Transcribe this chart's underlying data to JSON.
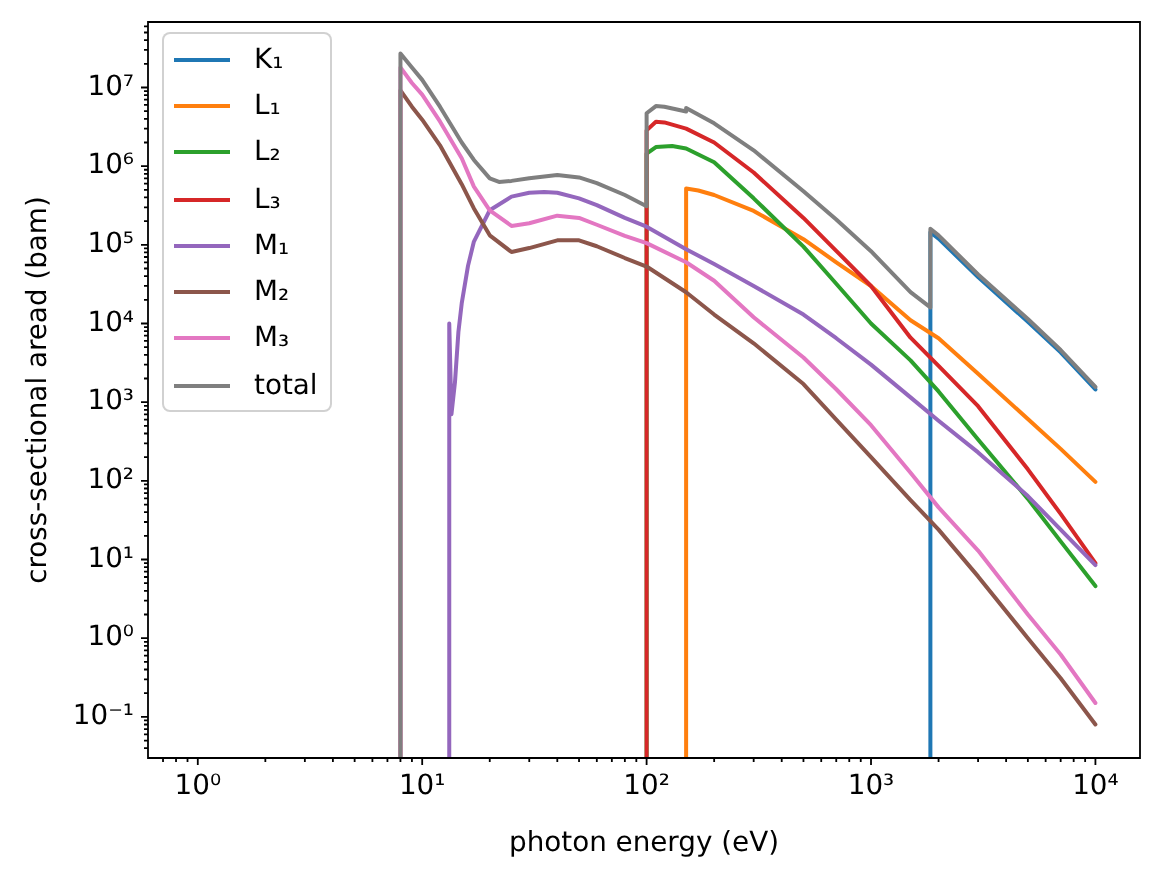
{
  "chart_data": {
    "type": "line",
    "xlabel": "photon energy (eV)",
    "ylabel": "cross-sectional aread (bam)",
    "log": "xy",
    "legend": "top left",
    "xlim": [
      0.63,
      15800
    ],
    "ylim": [
      0.03,
      68000000.0
    ],
    "xticks": [
      {
        "value": 0.7,
        "label": null
      },
      {
        "value": 0.8,
        "label": null
      },
      {
        "value": 0.9,
        "label": null
      },
      {
        "value": 1,
        "label": "10⁰"
      },
      {
        "value": 2,
        "label": null
      },
      {
        "value": 3,
        "label": null
      },
      {
        "value": 4,
        "label": null
      },
      {
        "value": 5,
        "label": null
      },
      {
        "value": 6,
        "label": null
      },
      {
        "value": 7,
        "label": null
      },
      {
        "value": 8,
        "label": null
      },
      {
        "value": 9,
        "label": null
      },
      {
        "value": 10,
        "label": "10¹"
      },
      {
        "value": 20,
        "label": null
      },
      {
        "value": 30,
        "label": null
      },
      {
        "value": 40,
        "label": null
      },
      {
        "value": 50,
        "label": null
      },
      {
        "value": 60,
        "label": null
      },
      {
        "value": 70,
        "label": null
      },
      {
        "value": 80,
        "label": null
      },
      {
        "value": 90,
        "label": null
      },
      {
        "value": 100,
        "label": "10²"
      },
      {
        "value": 200,
        "label": null
      },
      {
        "value": 300,
        "label": null
      },
      {
        "value": 400,
        "label": null
      },
      {
        "value": 500,
        "label": null
      },
      {
        "value": 600,
        "label": null
      },
      {
        "value": 700,
        "label": null
      },
      {
        "value": 800,
        "label": null
      },
      {
        "value": 900,
        "label": null
      },
      {
        "value": 1000,
        "label": "10³"
      },
      {
        "value": 2000,
        "label": null
      },
      {
        "value": 3000,
        "label": null
      },
      {
        "value": 4000,
        "label": null
      },
      {
        "value": 5000,
        "label": null
      },
      {
        "value": 6000,
        "label": null
      },
      {
        "value": 7000,
        "label": null
      },
      {
        "value": 8000,
        "label": null
      },
      {
        "value": 9000,
        "label": null
      },
      {
        "value": 10000,
        "label": "10⁴"
      }
    ],
    "yticks": [
      {
        "value": 0.04,
        "label": null
      },
      {
        "value": 0.05,
        "label": null
      },
      {
        "value": 0.06,
        "label": null
      },
      {
        "value": 0.07,
        "label": null
      },
      {
        "value": 0.08,
        "label": null
      },
      {
        "value": 0.09,
        "label": null
      },
      {
        "value": 0.1,
        "label": "10⁻¹"
      },
      {
        "value": 0.2,
        "label": null
      },
      {
        "value": 0.3,
        "label": null
      },
      {
        "value": 0.4,
        "label": null
      },
      {
        "value": 0.5,
        "label": null
      },
      {
        "value": 0.6,
        "label": null
      },
      {
        "value": 0.7,
        "label": null
      },
      {
        "value": 0.8,
        "label": null
      },
      {
        "value": 0.9,
        "label": null
      },
      {
        "value": 1,
        "label": "10⁰"
      },
      {
        "value": 2,
        "label": null
      },
      {
        "value": 3,
        "label": null
      },
      {
        "value": 4,
        "label": null
      },
      {
        "value": 5,
        "label": null
      },
      {
        "value": 6,
        "label": null
      },
      {
        "value": 7,
        "label": null
      },
      {
        "value": 8,
        "label": null
      },
      {
        "value": 9,
        "label": null
      },
      {
        "value": 10,
        "label": "10¹"
      },
      {
        "value": 20,
        "label": null
      },
      {
        "value": 30,
        "label": null
      },
      {
        "value": 40,
        "label": null
      },
      {
        "value": 50,
        "label": null
      },
      {
        "value": 60,
        "label": null
      },
      {
        "value": 70,
        "label": null
      },
      {
        "value": 80,
        "label": null
      },
      {
        "value": 90,
        "label": null
      },
      {
        "value": 100,
        "label": "10²"
      },
      {
        "value": 200,
        "label": null
      },
      {
        "value": 300,
        "label": null
      },
      {
        "value": 400,
        "label": null
      },
      {
        "value": 500,
        "label": null
      },
      {
        "value": 600,
        "label": null
      },
      {
        "value": 700,
        "label": null
      },
      {
        "value": 800,
        "label": null
      },
      {
        "value": 900,
        "label": null
      },
      {
        "value": 1000,
        "label": "10³"
      },
      {
        "value": 2000,
        "label": null
      },
      {
        "value": 3000,
        "label": null
      },
      {
        "value": 4000,
        "label": null
      },
      {
        "value": 5000,
        "label": null
      },
      {
        "value": 6000,
        "label": null
      },
      {
        "value": 7000,
        "label": null
      },
      {
        "value": 8000,
        "label": null
      },
      {
        "value": 9000,
        "label": null
      },
      {
        "value": 10000,
        "label": "10⁴"
      },
      {
        "value": 20000.0,
        "label": null
      },
      {
        "value": 30000.0,
        "label": null
      },
      {
        "value": 40000.0,
        "label": null
      },
      {
        "value": 50000.0,
        "label": null
      },
      {
        "value": 60000.0,
        "label": null
      },
      {
        "value": 70000.0,
        "label": null
      },
      {
        "value": 80000.0,
        "label": null
      },
      {
        "value": 90000.0,
        "label": null
      },
      {
        "value": 100000.0,
        "label": "10⁵"
      },
      {
        "value": 200000.0,
        "label": null
      },
      {
        "value": 300000.0,
        "label": null
      },
      {
        "value": 400000.0,
        "label": null
      },
      {
        "value": 500000.0,
        "label": null
      },
      {
        "value": 600000.0,
        "label": null
      },
      {
        "value": 700000.0,
        "label": null
      },
      {
        "value": 800000.0,
        "label": null
      },
      {
        "value": 900000.0,
        "label": null
      },
      {
        "value": 1000000.0,
        "label": "10⁶"
      },
      {
        "value": 2000000.0,
        "label": null
      },
      {
        "value": 3000000.0,
        "label": null
      },
      {
        "value": 4000000.0,
        "label": null
      },
      {
        "value": 5000000.0,
        "label": null
      },
      {
        "value": 6000000.0,
        "label": null
      },
      {
        "value": 7000000.0,
        "label": null
      },
      {
        "value": 8000000.0,
        "label": null
      },
      {
        "value": 9000000.0,
        "label": null
      },
      {
        "value": 10000000.0,
        "label": "10⁷"
      },
      {
        "value": 20000000.0,
        "label": null
      },
      {
        "value": 30000000.0,
        "label": null
      },
      {
        "value": 40000000.0,
        "label": null
      },
      {
        "value": 50000000.0,
        "label": null
      },
      {
        "value": 60000000.0,
        "label": null
      }
    ],
    "series": [
      {
        "name": "K₁",
        "color": "#1f77b4",
        "x": [
          1839,
          1839,
          2000,
          3000,
          5000,
          7000,
          10000
        ],
        "values": [
          0.03,
          145000.0,
          120000.0,
          39000.0,
          10500.0,
          4300.0,
          1450.0
        ]
      },
      {
        "name": "L₁",
        "color": "#ff7f0e",
        "x": [
          150,
          150,
          170,
          200,
          300,
          500,
          700,
          1000,
          1500,
          2000,
          3000,
          5000,
          7000,
          10000
        ],
        "values": [
          0.03,
          520000.0,
          490000.0,
          430000.0,
          270000.0,
          118000.0,
          60000.0,
          30000.0,
          11000.0,
          6500.0,
          2300.0,
          610,
          255,
          97
        ]
      },
      {
        "name": "L₂",
        "color": "#2ca02c",
        "x": [
          100,
          100,
          110,
          130,
          150,
          200,
          300,
          500,
          700,
          1000,
          1500,
          2000,
          3000,
          5000,
          7000,
          10000
        ],
        "values": [
          0.03,
          1440000.0,
          1750000.0,
          1800000.0,
          1680000.0,
          1120000.0,
          390000.0,
          95000.0,
          32000.0,
          10000.0,
          3400.0,
          1370.0,
          335,
          59,
          17,
          4.6
        ]
      },
      {
        "name": "L₃",
        "color": "#d62728",
        "x": [
          100,
          100,
          110,
          120,
          150,
          200,
          300,
          500,
          700,
          1000,
          1500,
          2000,
          3000,
          5000,
          7000,
          10000
        ],
        "values": [
          0.03,
          2850000.0,
          3660000.0,
          3600000.0,
          3000000.0,
          2000000.0,
          830000.0,
          220000.0,
          84000.0,
          30000.0,
          6600.0,
          2900.0,
          890,
          140,
          38,
          9.0
        ]
      },
      {
        "name": "M₁",
        "color": "#9467bd",
        "x": [
          13.2,
          13.2,
          13.5,
          14,
          14.5,
          15,
          16,
          17,
          20,
          25,
          30,
          35,
          40,
          50,
          60,
          80,
          100,
          150,
          200,
          300,
          500,
          700,
          1000,
          1500,
          2000,
          3000,
          5000,
          7000,
          10000
        ],
        "values": [
          0.03,
          10000.0,
          700,
          1800.0,
          7800.0,
          18000.0,
          54000.0,
          110000.0,
          275000.0,
          410000.0,
          460000.0,
          470000.0,
          460000.0,
          390000.0,
          320000.0,
          220000.0,
          170000.0,
          88000.0,
          57000.0,
          30000.0,
          13000.0,
          6500.0,
          3000.0,
          1150.0,
          580,
          230,
          64,
          24,
          8.5
        ]
      },
      {
        "name": "M₂",
        "color": "#8c564b",
        "x": [
          8,
          8,
          9,
          10,
          12,
          15,
          17,
          20,
          25,
          30,
          40,
          50,
          60,
          80,
          100,
          150,
          200,
          300,
          500,
          700,
          1000,
          1500,
          2000,
          3000,
          5000,
          7000,
          10000
        ],
        "values": [
          0.03,
          9200000.0,
          5700000.0,
          3900000.0,
          1840000.0,
          590000.0,
          290000.0,
          132000.0,
          81000.0,
          91000.0,
          114000.0,
          114000.0,
          96000.0,
          68000.0,
          53000.0,
          25000.0,
          13000.0,
          5600.0,
          1700.0,
          600,
          200,
          57,
          24,
          6.1,
          1.0,
          0.31,
          0.08
        ]
      },
      {
        "name": "M₃",
        "color": "#e377c2",
        "x": [
          8,
          8,
          9,
          10,
          12,
          15,
          17,
          20,
          25,
          30,
          40,
          50,
          60,
          80,
          100,
          150,
          200,
          300,
          500,
          700,
          1000,
          1500,
          2000,
          3000,
          5000,
          7000,
          10000
        ],
        "values": [
          0.03,
          18000000.0,
          11400000.0,
          8100000.0,
          3700000.0,
          1260000.0,
          550000.0,
          275000.0,
          174000.0,
          188000.0,
          235000.0,
          220000.0,
          180000.0,
          130000.0,
          105000.0,
          60000.0,
          35000.0,
          12000.0,
          3700.0,
          1460.0,
          510,
          127,
          46,
          13,
          2.0,
          0.62,
          0.15
        ]
      },
      {
        "name": "total",
        "color": "#7f7f7f",
        "x": [
          8,
          8,
          9,
          10,
          12,
          15,
          17,
          20,
          22,
          25,
          30,
          40,
          50,
          60,
          80,
          100,
          100,
          110,
          120,
          150,
          150,
          200,
          300,
          500,
          700,
          1000,
          1500,
          1839,
          1839,
          2000,
          3000,
          5000,
          7000,
          10000
        ],
        "values": [
          0.03,
          27000000.0,
          18000000.0,
          12500000.0,
          5700000.0,
          2000000.0,
          1200000.0,
          700000.0,
          630000.0,
          650000.0,
          700000.0,
          770000.0,
          720000.0,
          610000.0,
          430000.0,
          310000.0,
          4700000.0,
          5800000.0,
          5700000.0,
          4960000.0,
          5500000.0,
          3500000.0,
          1590000.0,
          480000.0,
          210000.0,
          83000.0,
          25000.0,
          16000.0,
          160000.0,
          132000.0,
          42000.0,
          11400.0,
          4600.0,
          1560.0
        ]
      }
    ]
  }
}
